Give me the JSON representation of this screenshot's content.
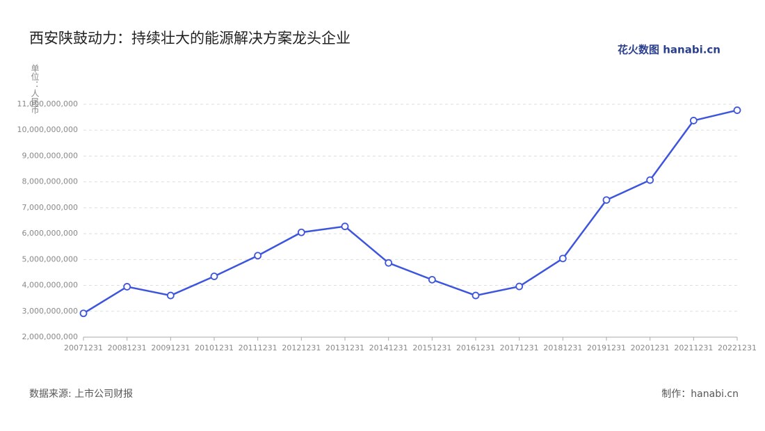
{
  "chart_data": {
    "type": "line",
    "title": "西安陕鼓动力：持续壮大的能源解决方案龙头企业",
    "logo": "花火数图 hanabi.cn",
    "y_label": "单位：人民币",
    "source": "数据来源: 上市公司财报",
    "credit": "制作：hanabi.cn",
    "categories": [
      "20071231",
      "20081231",
      "20091231",
      "20101231",
      "20111231",
      "20121231",
      "20131231",
      "20141231",
      "20151231",
      "20161231",
      "20171231",
      "20181231",
      "20191231",
      "20201231",
      "20211231",
      "20221231"
    ],
    "values": [
      2920000000,
      3950000000,
      3610000000,
      4350000000,
      5150000000,
      6050000000,
      6280000000,
      4870000000,
      4220000000,
      3610000000,
      3960000000,
      5040000000,
      7300000000,
      8070000000,
      10370000000,
      10770000000
    ],
    "color": "#3d55dd",
    "ylim": [
      2000000000,
      11000000000
    ],
    "yticks": [
      {
        "value": 2000000000,
        "label": "2,000,000,000"
      },
      {
        "value": 3000000000,
        "label": "3,000,000,000"
      },
      {
        "value": 4000000000,
        "label": "4,000,000,000"
      },
      {
        "value": 5000000000,
        "label": "5,000,000,000"
      },
      {
        "value": 6000000000,
        "label": "6,000,000,000"
      },
      {
        "value": 7000000000,
        "label": "7,000,000,000"
      },
      {
        "value": 8000000000,
        "label": "8,000,000,000"
      },
      {
        "value": 9000000000,
        "label": "9,000,000,000"
      },
      {
        "value": 10000000000,
        "label": "10,000,000,000"
      },
      {
        "value": 11000000000,
        "label": "11,000,000,000"
      }
    ],
    "grid": true
  }
}
